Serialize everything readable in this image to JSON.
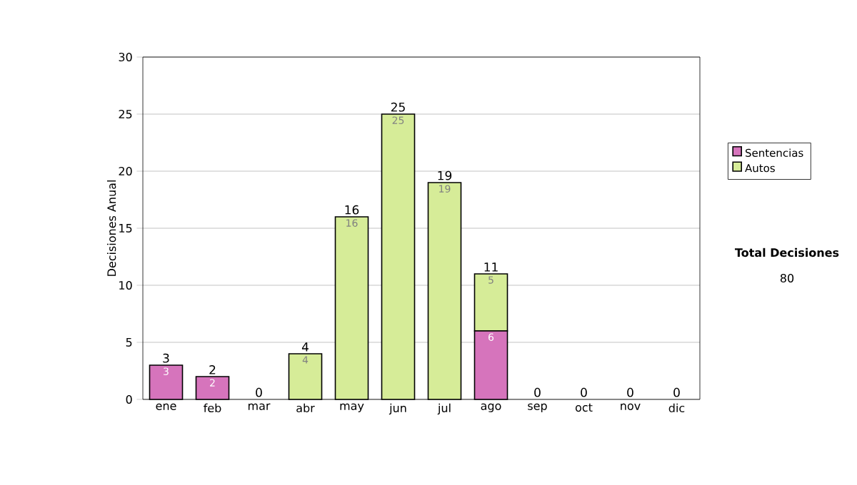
{
  "chart_data": {
    "type": "bar",
    "stacked": true,
    "ylabel": "Decisiones Anual",
    "categories": [
      "ene",
      "feb",
      "mar",
      "abr",
      "may",
      "jun",
      "jul",
      "ago",
      "sep",
      "oct",
      "nov",
      "dic"
    ],
    "series": [
      {
        "name": "Sentencias",
        "color": "#d674bc",
        "values": [
          3,
          2,
          0,
          0,
          0,
          0,
          0,
          6,
          0,
          0,
          0,
          0
        ],
        "value_labels": [
          "3",
          "2",
          null,
          null,
          null,
          null,
          null,
          "6",
          null,
          null,
          null,
          null
        ]
      },
      {
        "name": "Autos",
        "color": "#d6ec98",
        "values": [
          0,
          0,
          0,
          4,
          16,
          25,
          19,
          5,
          0,
          0,
          0,
          0
        ],
        "value_labels": [
          null,
          null,
          null,
          "4",
          "16",
          "25",
          "19",
          "5",
          null,
          null,
          null,
          null
        ]
      }
    ],
    "totals": [
      "3",
      "2",
      "0",
      "4",
      "16",
      "25",
      "19",
      "11",
      "0",
      "0",
      "0",
      "0"
    ],
    "ylim": [
      0,
      30
    ],
    "yticks": [
      0,
      5,
      10,
      15,
      20,
      25,
      30
    ],
    "grid": "y",
    "legend": "right",
    "annotations": [
      "Total Decisiones",
      "80"
    ]
  }
}
